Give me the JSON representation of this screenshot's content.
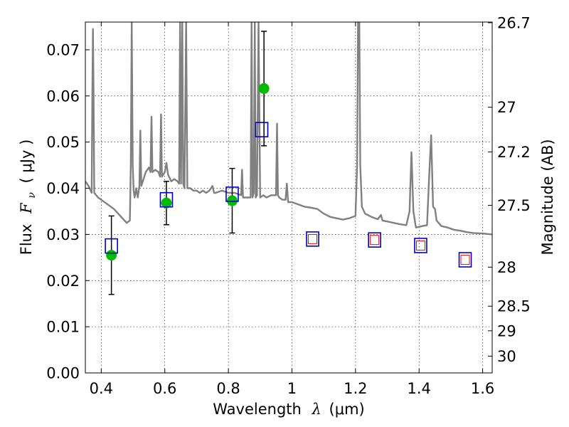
{
  "chart_data": {
    "type": "scatter",
    "xlabel": "Wavelength",
    "xlabel_symbol": "λ",
    "xlabel_unit": "(μm)",
    "ylabel": "Flux",
    "ylabel_symbol": "F",
    "ylabel_subscript": "ν",
    "ylabel_unit": "( μJy )",
    "y2label": "Magnitude (AB)",
    "xlim": [
      0.35,
      1.63
    ],
    "ylim": [
      0.0,
      0.076
    ],
    "grid": true,
    "x_ticks": [
      {
        "value": 0.4,
        "label": "0.4"
      },
      {
        "value": 0.6,
        "label": "0.6"
      },
      {
        "value": 0.8,
        "label": "0.8"
      },
      {
        "value": 1.0,
        "label": "1"
      },
      {
        "value": 1.2,
        "label": "1.2"
      },
      {
        "value": 1.4,
        "label": "1.4"
      },
      {
        "value": 1.6,
        "label": "1.6"
      }
    ],
    "y_ticks": [
      {
        "value": 0.0,
        "label": "0.00"
      },
      {
        "value": 0.01,
        "label": "0.01"
      },
      {
        "value": 0.02,
        "label": "0.02"
      },
      {
        "value": 0.03,
        "label": "0.03"
      },
      {
        "value": 0.04,
        "label": "0.04"
      },
      {
        "value": 0.05,
        "label": "0.05"
      },
      {
        "value": 0.06,
        "label": "0.06"
      },
      {
        "value": 0.07,
        "label": "0.07"
      }
    ],
    "y2_ticks": [
      {
        "value": 26.7,
        "label": "26.7"
      },
      {
        "value": 27.0,
        "label": "27"
      },
      {
        "value": 27.2,
        "label": "27.2"
      },
      {
        "value": 27.5,
        "label": "27.5"
      },
      {
        "value": 28.0,
        "label": "28"
      },
      {
        "value": 28.5,
        "label": "28.5"
      },
      {
        "value": 29.0,
        "label": "29"
      },
      {
        "value": 30.0,
        "label": "30"
      }
    ],
    "colors": {
      "spectrum": "#808080",
      "observed": "#00bb00",
      "model_square": "#0000cc",
      "model_square_inner": "#ff0000",
      "errorbar": "#000000"
    },
    "series": [
      {
        "kind": "spectrum",
        "points": [
          [
            0.35,
            0.0415
          ],
          [
            0.36,
            0.0405
          ],
          [
            0.37,
            0.039
          ],
          [
            0.372,
            0.06
          ],
          [
            0.374,
            0.0745
          ],
          [
            0.376,
            0.06
          ],
          [
            0.378,
            0.039
          ],
          [
            0.39,
            0.038
          ],
          [
            0.4,
            0.0375
          ],
          [
            0.42,
            0.0365
          ],
          [
            0.44,
            0.0355
          ],
          [
            0.46,
            0.034
          ],
          [
            0.48,
            0.0325
          ],
          [
            0.49,
            0.033
          ],
          [
            0.493,
            0.045
          ],
          [
            0.496,
            0.076
          ],
          [
            0.499,
            0.045
          ],
          [
            0.502,
            0.0395
          ],
          [
            0.505,
            0.038
          ],
          [
            0.51,
            0.04
          ],
          [
            0.515,
            0.038
          ],
          [
            0.52,
            0.0405
          ],
          [
            0.523,
            0.0525
          ],
          [
            0.526,
            0.0405
          ],
          [
            0.54,
            0.0435
          ],
          [
            0.55,
            0.0445
          ],
          [
            0.555,
            0.0435
          ],
          [
            0.558,
            0.0555
          ],
          [
            0.561,
            0.0435
          ],
          [
            0.57,
            0.044
          ],
          [
            0.58,
            0.0435
          ],
          [
            0.585,
            0.0425
          ],
          [
            0.588,
            0.056
          ],
          [
            0.591,
            0.0425
          ],
          [
            0.6,
            0.0435
          ],
          [
            0.605,
            0.0455
          ],
          [
            0.61,
            0.043
          ],
          [
            0.62,
            0.0415
          ],
          [
            0.63,
            0.042
          ],
          [
            0.64,
            0.0415
          ],
          [
            0.645,
            0.041
          ],
          [
            0.648,
            0.076
          ],
          [
            0.651,
            0.041
          ],
          [
            0.655,
            0.076
          ],
          [
            0.658,
            0.041
          ],
          [
            0.662,
            0.04
          ],
          [
            0.667,
            0.076
          ],
          [
            0.671,
            0.04
          ],
          [
            0.68,
            0.04
          ],
          [
            0.69,
            0.0395
          ],
          [
            0.7,
            0.0395
          ],
          [
            0.71,
            0.039
          ],
          [
            0.72,
            0.0395
          ],
          [
            0.73,
            0.039
          ],
          [
            0.74,
            0.0395
          ],
          [
            0.75,
            0.0405
          ],
          [
            0.755,
            0.039
          ],
          [
            0.76,
            0.039
          ],
          [
            0.78,
            0.0395
          ],
          [
            0.8,
            0.039
          ],
          [
            0.82,
            0.039
          ],
          [
            0.84,
            0.0385
          ],
          [
            0.843,
            0.044
          ],
          [
            0.846,
            0.038
          ],
          [
            0.86,
            0.038
          ],
          [
            0.87,
            0.038
          ],
          [
            0.873,
            0.076
          ],
          [
            0.876,
            0.038
          ],
          [
            0.88,
            0.039
          ],
          [
            0.883,
            0.076
          ],
          [
            0.886,
            0.038
          ],
          [
            0.89,
            0.0385
          ],
          [
            0.895,
            0.076
          ],
          [
            0.9,
            0.038
          ],
          [
            0.91,
            0.0385
          ],
          [
            0.92,
            0.038
          ],
          [
            0.935,
            0.0385
          ],
          [
            0.95,
            0.0385
          ],
          [
            0.953,
            0.054
          ],
          [
            0.956,
            0.0385
          ],
          [
            0.96,
            0.038
          ],
          [
            0.97,
            0.0375
          ],
          [
            0.98,
            0.0375
          ],
          [
            0.984,
            0.041
          ],
          [
            0.988,
            0.037
          ],
          [
            1.0,
            0.037
          ],
          [
            1.02,
            0.0365
          ],
          [
            1.04,
            0.036
          ],
          [
            1.06,
            0.0358
          ],
          [
            1.08,
            0.0355
          ],
          [
            1.1,
            0.0345
          ],
          [
            1.12,
            0.0338
          ],
          [
            1.14,
            0.0335
          ],
          [
            1.16,
            0.0332
          ],
          [
            1.18,
            0.0335
          ],
          [
            1.2,
            0.034
          ],
          [
            1.205,
            0.045
          ],
          [
            1.208,
            0.076
          ],
          [
            1.212,
            0.076
          ],
          [
            1.215,
            0.045
          ],
          [
            1.22,
            0.036
          ],
          [
            1.23,
            0.0345
          ],
          [
            1.25,
            0.0338
          ],
          [
            1.27,
            0.0333
          ],
          [
            1.28,
            0.0342
          ],
          [
            1.285,
            0.033
          ],
          [
            1.3,
            0.0328
          ],
          [
            1.32,
            0.0325
          ],
          [
            1.34,
            0.0322
          ],
          [
            1.36,
            0.032
          ],
          [
            1.37,
            0.035
          ],
          [
            1.376,
            0.0478
          ],
          [
            1.382,
            0.035
          ],
          [
            1.39,
            0.0315
          ],
          [
            1.41,
            0.0318
          ],
          [
            1.425,
            0.032
          ],
          [
            1.432,
            0.043
          ],
          [
            1.438,
            0.0515
          ],
          [
            1.444,
            0.036
          ],
          [
            1.45,
            0.0355
          ],
          [
            1.455,
            0.033
          ],
          [
            1.47,
            0.0318
          ],
          [
            1.49,
            0.0315
          ],
          [
            1.51,
            0.031
          ],
          [
            1.53,
            0.0308
          ],
          [
            1.55,
            0.0305
          ],
          [
            1.57,
            0.0303
          ],
          [
            1.6,
            0.0302
          ],
          [
            1.63,
            0.03
          ]
        ]
      },
      {
        "kind": "observed",
        "points": [
          {
            "x": 0.432,
            "y": 0.0255,
            "err": 0.0085
          },
          {
            "x": 0.605,
            "y": 0.0368,
            "err": 0.0047
          },
          {
            "x": 0.812,
            "y": 0.0373,
            "err": 0.007
          },
          {
            "x": 0.912,
            "y": 0.0616,
            "err": 0.0124
          }
        ]
      },
      {
        "kind": "model",
        "points": [
          {
            "x": 0.432,
            "y": 0.0275,
            "inner": false
          },
          {
            "x": 0.605,
            "y": 0.0375,
            "inner": false
          },
          {
            "x": 0.812,
            "y": 0.0387,
            "inner": false
          },
          {
            "x": 0.905,
            "y": 0.0527,
            "inner": false
          },
          {
            "x": 1.065,
            "y": 0.029,
            "inner": true
          },
          {
            "x": 1.26,
            "y": 0.0288,
            "inner": true
          },
          {
            "x": 1.405,
            "y": 0.0276,
            "inner": true
          },
          {
            "x": 1.545,
            "y": 0.0245,
            "inner": true
          }
        ]
      }
    ]
  }
}
